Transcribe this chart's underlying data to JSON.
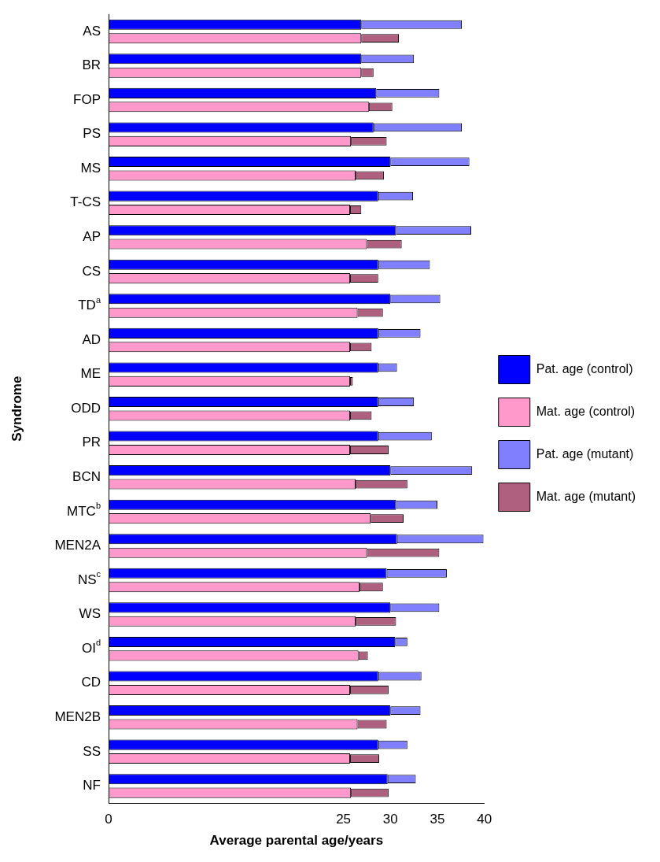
{
  "chart_data": {
    "type": "bar",
    "orientation": "horizontal",
    "ylabel": "Syndrome",
    "xlabel": "Average parental age/years",
    "categories": [
      "AS",
      "BR",
      "FOP",
      "PS",
      "MS",
      "T-CS",
      "AP",
      "CS",
      "TD$^{a}$",
      "AD",
      "ME",
      "ODD",
      "PR",
      "BCN",
      "MTC$^{b}$",
      "MEN2A",
      "NS$^{c}$",
      "WS",
      "OI$^{d}$",
      "CD",
      "MEN2B",
      "SS",
      "NF"
    ],
    "series": [
      {
        "name": "Pat. age (control)",
        "color": "#0000ff",
        "values": [
          26.9,
          26.9,
          28.5,
          28.2,
          30.0,
          28.7,
          30.6,
          28.7,
          30.0,
          28.7,
          28.7,
          28.7,
          28.7,
          30.0,
          30.6,
          30.7,
          29.6,
          30.0,
          30.5,
          28.7,
          30.0,
          28.7,
          29.7
        ]
      },
      {
        "name": "Mat. age (control)",
        "color": "#ff99cc",
        "values": [
          26.9,
          26.9,
          27.7,
          25.8,
          26.3,
          25.7,
          27.5,
          25.7,
          26.5,
          25.7,
          25.7,
          25.7,
          25.7,
          26.3,
          27.9,
          27.5,
          26.7,
          26.3,
          26.6,
          25.7,
          26.5,
          25.7,
          25.8
        ]
      },
      {
        "name": "Pat. age (mutant)",
        "color": "#8080ff",
        "base": [
          26.9,
          26.9,
          28.5,
          28.2,
          30.0,
          28.7,
          30.6,
          28.7,
          30.0,
          28.7,
          28.7,
          28.7,
          28.7,
          30.0,
          30.6,
          30.7,
          29.6,
          30.0,
          30.5,
          28.7,
          30.0,
          28.7,
          29.7
        ],
        "values": [
          10.7,
          5.6,
          6.7,
          9.4,
          8.4,
          3.7,
          8.0,
          5.5,
          5.3,
          4.5,
          2.0,
          3.8,
          5.7,
          8.7,
          4.4,
          9.2,
          6.4,
          5.2,
          1.3,
          4.6,
          3.2,
          3.1,
          3.0
        ]
      },
      {
        "name": "Mat. age (mutant)",
        "color": "#b0607f",
        "base": [
          26.9,
          26.9,
          27.7,
          25.8,
          26.3,
          25.7,
          27.5,
          25.7,
          26.5,
          25.7,
          25.7,
          25.7,
          25.7,
          26.3,
          27.9,
          27.5,
          26.7,
          26.3,
          26.6,
          25.7,
          26.5,
          25.7,
          25.8
        ],
        "values": [
          4.0,
          1.3,
          2.5,
          3.8,
          3.0,
          1.2,
          3.7,
          3.0,
          2.7,
          2.3,
          0.3,
          2.3,
          4.1,
          5.5,
          3.5,
          7.7,
          2.5,
          4.3,
          1.0,
          4.1,
          3.1,
          3.1,
          4.0
        ]
      }
    ],
    "xlim": [
      0,
      40
    ],
    "xticks": [
      0,
      25,
      30,
      35,
      40
    ],
    "grid": false,
    "legend": "right"
  }
}
